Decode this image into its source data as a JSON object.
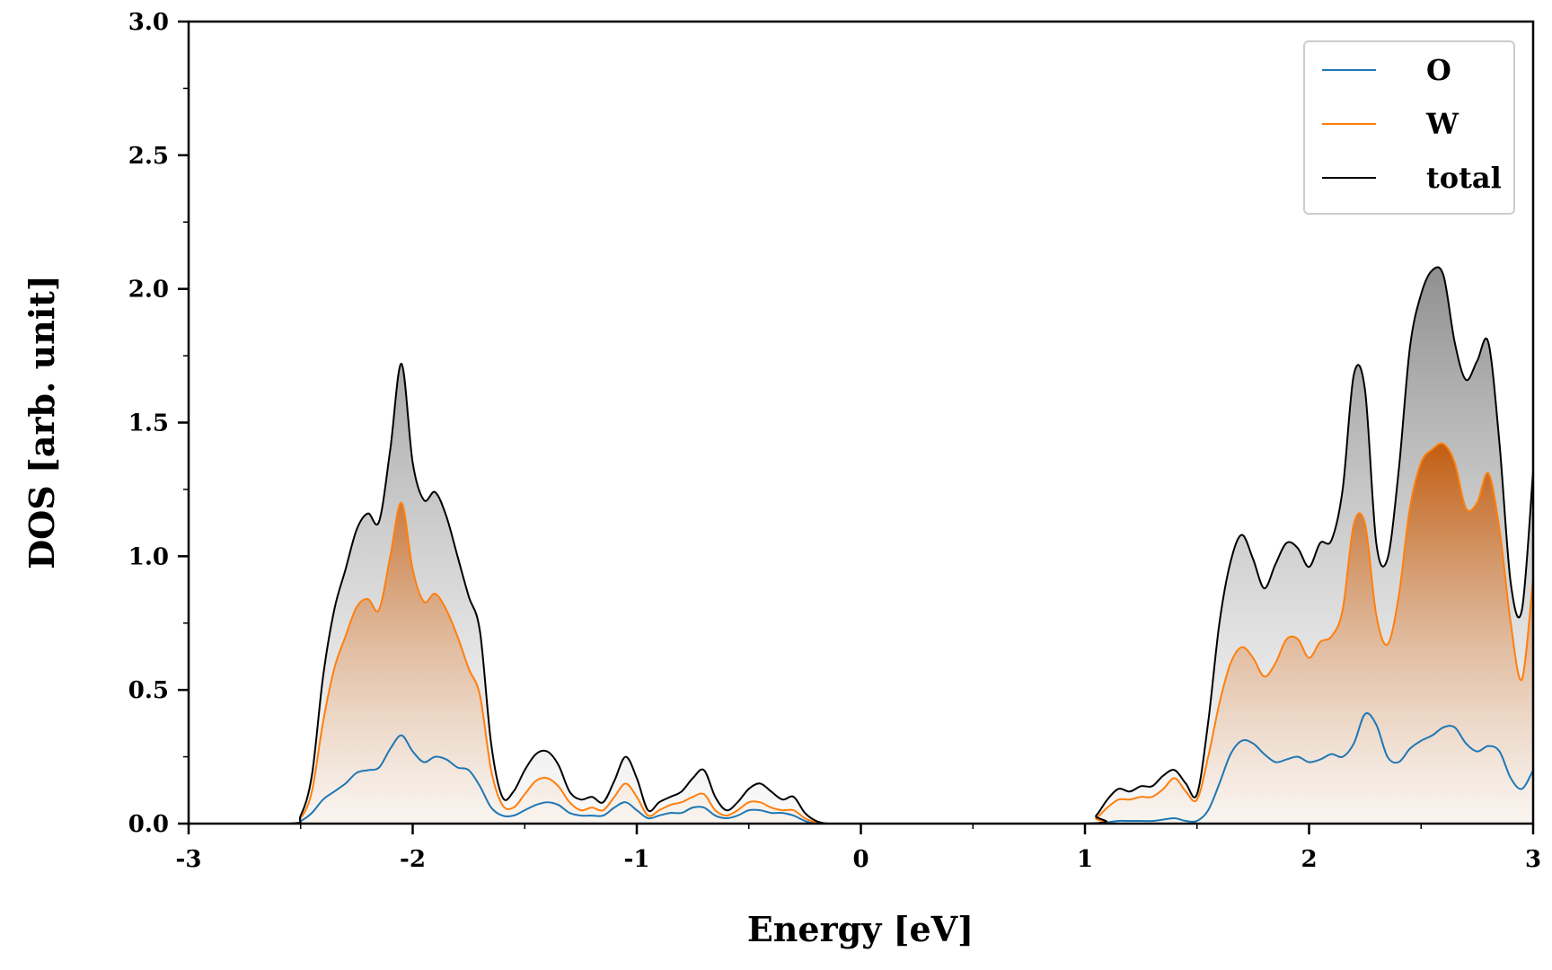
{
  "chart_data": {
    "type": "area",
    "title": "",
    "xlabel": "Energy [eV]",
    "ylabel": "DOS [arb. unit]",
    "xlim": [
      -3,
      3
    ],
    "ylim": [
      0,
      3.0
    ],
    "x_ticks": [
      -3,
      -2,
      -1,
      0,
      1,
      2,
      3
    ],
    "x_tick_labels": [
      "-3",
      "-2",
      "-1",
      "0",
      "1",
      "2",
      "3"
    ],
    "y_ticks": [
      0,
      0.5,
      1.0,
      1.5,
      2.0,
      2.5,
      3.0
    ],
    "y_tick_labels": [
      "0.0",
      "0.5",
      "1.0",
      "1.5",
      "2.0",
      "2.5",
      "3.0"
    ],
    "grid": false,
    "legend_position": "top-right",
    "series": [
      {
        "name": "O",
        "color": "#1f77b4",
        "fill": "none",
        "x": [
          -3.0,
          -2.55,
          -2.5,
          -2.45,
          -2.4,
          -2.35,
          -2.3,
          -2.25,
          -2.2,
          -2.15,
          -2.1,
          -2.05,
          -2.0,
          -1.95,
          -1.9,
          -1.85,
          -1.8,
          -1.75,
          -1.7,
          -1.65,
          -1.6,
          -1.55,
          -1.5,
          -1.45,
          -1.4,
          -1.35,
          -1.3,
          -1.25,
          -1.2,
          -1.15,
          -1.1,
          -1.05,
          -1.0,
          -0.95,
          -0.9,
          -0.85,
          -0.8,
          -0.75,
          -0.7,
          -0.65,
          -0.6,
          -0.55,
          -0.5,
          -0.45,
          -0.4,
          -0.35,
          -0.3,
          -0.25,
          -0.2,
          -0.15,
          -0.1,
          1.0,
          1.05,
          1.1,
          1.15,
          1.2,
          1.25,
          1.3,
          1.35,
          1.4,
          1.45,
          1.5,
          1.55,
          1.6,
          1.65,
          1.7,
          1.75,
          1.8,
          1.85,
          1.9,
          1.95,
          2.0,
          2.05,
          2.1,
          2.15,
          2.2,
          2.25,
          2.3,
          2.35,
          2.4,
          2.45,
          2.5,
          2.55,
          2.6,
          2.65,
          2.7,
          2.75,
          2.8,
          2.85,
          2.9,
          2.95,
          3.0
        ],
        "values": [
          0.0,
          0.0,
          0.01,
          0.04,
          0.09,
          0.12,
          0.15,
          0.19,
          0.2,
          0.21,
          0.28,
          0.33,
          0.27,
          0.23,
          0.25,
          0.24,
          0.21,
          0.2,
          0.14,
          0.06,
          0.03,
          0.03,
          0.05,
          0.07,
          0.08,
          0.07,
          0.04,
          0.03,
          0.03,
          0.03,
          0.06,
          0.08,
          0.05,
          0.02,
          0.03,
          0.04,
          0.04,
          0.06,
          0.06,
          0.03,
          0.02,
          0.03,
          0.05,
          0.05,
          0.04,
          0.04,
          0.03,
          0.01,
          0.0,
          0.0,
          0.0,
          0.0,
          0.0,
          0.005,
          0.01,
          0.01,
          0.01,
          0.01,
          0.015,
          0.02,
          0.01,
          0.01,
          0.05,
          0.15,
          0.26,
          0.31,
          0.3,
          0.26,
          0.23,
          0.24,
          0.25,
          0.23,
          0.24,
          0.26,
          0.25,
          0.3,
          0.41,
          0.37,
          0.25,
          0.23,
          0.28,
          0.31,
          0.33,
          0.36,
          0.36,
          0.3,
          0.27,
          0.29,
          0.27,
          0.17,
          0.13,
          0.2
        ]
      },
      {
        "name": "W",
        "color": "#ff7f0e",
        "fill": "#c25d10",
        "x": [
          -3.0,
          -2.55,
          -2.5,
          -2.45,
          -2.4,
          -2.35,
          -2.3,
          -2.25,
          -2.2,
          -2.15,
          -2.1,
          -2.05,
          -2.0,
          -1.95,
          -1.9,
          -1.85,
          -1.8,
          -1.75,
          -1.7,
          -1.65,
          -1.6,
          -1.55,
          -1.5,
          -1.45,
          -1.4,
          -1.35,
          -1.3,
          -1.25,
          -1.2,
          -1.15,
          -1.1,
          -1.05,
          -1.0,
          -0.95,
          -0.9,
          -0.85,
          -0.8,
          -0.75,
          -0.7,
          -0.65,
          -0.6,
          -0.55,
          -0.5,
          -0.45,
          -0.4,
          -0.35,
          -0.3,
          -0.25,
          -0.2,
          -0.15,
          -0.1,
          1.0,
          1.05,
          1.1,
          1.15,
          1.2,
          1.25,
          1.3,
          1.35,
          1.4,
          1.45,
          1.5,
          1.55,
          1.6,
          1.65,
          1.7,
          1.75,
          1.8,
          1.85,
          1.9,
          1.95,
          2.0,
          2.05,
          2.1,
          2.15,
          2.2,
          2.25,
          2.3,
          2.35,
          2.4,
          2.45,
          2.5,
          2.55,
          2.6,
          2.65,
          2.7,
          2.75,
          2.8,
          2.85,
          2.9,
          2.95,
          3.0
        ],
        "values": [
          0.0,
          0.0,
          0.02,
          0.12,
          0.38,
          0.58,
          0.7,
          0.81,
          0.84,
          0.8,
          1.0,
          1.2,
          0.95,
          0.83,
          0.86,
          0.8,
          0.7,
          0.58,
          0.48,
          0.2,
          0.07,
          0.06,
          0.11,
          0.16,
          0.17,
          0.14,
          0.08,
          0.05,
          0.06,
          0.05,
          0.1,
          0.15,
          0.1,
          0.03,
          0.05,
          0.07,
          0.08,
          0.1,
          0.11,
          0.05,
          0.03,
          0.05,
          0.08,
          0.08,
          0.06,
          0.05,
          0.05,
          0.02,
          0.005,
          0.0,
          0.0,
          0.0,
          0.02,
          0.06,
          0.09,
          0.09,
          0.1,
          0.1,
          0.13,
          0.17,
          0.12,
          0.09,
          0.25,
          0.45,
          0.6,
          0.66,
          0.62,
          0.55,
          0.6,
          0.69,
          0.69,
          0.62,
          0.68,
          0.7,
          0.8,
          1.12,
          1.12,
          0.78,
          0.67,
          0.85,
          1.18,
          1.35,
          1.4,
          1.42,
          1.35,
          1.18,
          1.2,
          1.31,
          1.1,
          0.75,
          0.54,
          0.92
        ]
      },
      {
        "name": "total",
        "color": "#000000",
        "fill": "#8f8f8f",
        "x": [
          -3.0,
          -2.55,
          -2.5,
          -2.45,
          -2.4,
          -2.35,
          -2.3,
          -2.25,
          -2.2,
          -2.15,
          -2.1,
          -2.05,
          -2.0,
          -1.95,
          -1.9,
          -1.85,
          -1.8,
          -1.75,
          -1.7,
          -1.65,
          -1.6,
          -1.55,
          -1.5,
          -1.45,
          -1.4,
          -1.35,
          -1.3,
          -1.25,
          -1.2,
          -1.15,
          -1.1,
          -1.05,
          -1.0,
          -0.95,
          -0.9,
          -0.85,
          -0.8,
          -0.75,
          -0.7,
          -0.65,
          -0.6,
          -0.55,
          -0.5,
          -0.45,
          -0.4,
          -0.35,
          -0.3,
          -0.25,
          -0.2,
          -0.15,
          -0.1,
          1.0,
          1.05,
          1.1,
          1.15,
          1.2,
          1.25,
          1.3,
          1.35,
          1.4,
          1.45,
          1.5,
          1.55,
          1.6,
          1.65,
          1.7,
          1.75,
          1.8,
          1.85,
          1.9,
          1.95,
          2.0,
          2.05,
          2.1,
          2.15,
          2.2,
          2.25,
          2.3,
          2.35,
          2.4,
          2.45,
          2.5,
          2.55,
          2.6,
          2.65,
          2.7,
          2.75,
          2.8,
          2.85,
          2.9,
          2.95,
          3.0
        ],
        "values": [
          0.0,
          0.0,
          0.03,
          0.18,
          0.55,
          0.8,
          0.95,
          1.1,
          1.16,
          1.13,
          1.4,
          1.72,
          1.35,
          1.21,
          1.24,
          1.15,
          1.0,
          0.85,
          0.72,
          0.3,
          0.1,
          0.12,
          0.2,
          0.26,
          0.27,
          0.22,
          0.12,
          0.09,
          0.1,
          0.08,
          0.16,
          0.25,
          0.17,
          0.05,
          0.08,
          0.1,
          0.12,
          0.17,
          0.2,
          0.1,
          0.05,
          0.08,
          0.13,
          0.15,
          0.12,
          0.09,
          0.1,
          0.04,
          0.01,
          0.0,
          0.0,
          0.0,
          0.03,
          0.09,
          0.13,
          0.12,
          0.14,
          0.14,
          0.18,
          0.2,
          0.15,
          0.11,
          0.38,
          0.75,
          0.98,
          1.08,
          0.99,
          0.88,
          0.97,
          1.05,
          1.03,
          0.96,
          1.05,
          1.06,
          1.25,
          1.68,
          1.62,
          1.05,
          0.99,
          1.32,
          1.78,
          1.98,
          2.07,
          2.05,
          1.8,
          1.66,
          1.73,
          1.8,
          1.42,
          0.9,
          0.8,
          1.32
        ]
      }
    ]
  }
}
